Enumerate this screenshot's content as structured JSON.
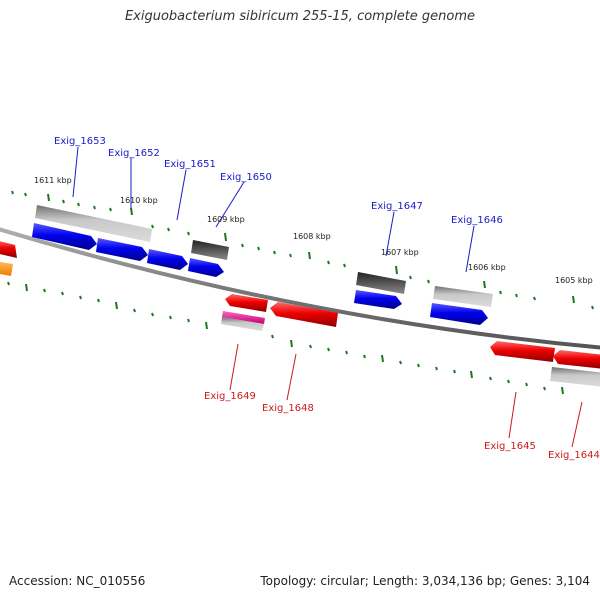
{
  "title": "Exiguobacterium sibiricum 255-15, complete genome",
  "footer": {
    "accession": "Accession: NC_010556",
    "summary": "Topology: circular; Length: 3,034,136 bp; Genes: 3,104"
  },
  "colors": {
    "forward_cds": "#0a0af0",
    "reverse_cds": "#ee0a0a",
    "gray_feature": "#a6a6a6",
    "dark_feature": "#555555",
    "pink_feature": "#e81e9a",
    "orange_feature": "#ff9900",
    "backbone": "#888888",
    "ticks": "#1a7a1a",
    "forward_label": "#1a1ac8",
    "reverse_label": "#cc1a1a"
  },
  "scale_labels": [
    "1611 kbp",
    "1610 kbp",
    "1609 kbp",
    "1608 kbp",
    "1607 kbp",
    "1606 kbp",
    "1605 kbp"
  ],
  "forward_genes": [
    "Exig_1653",
    "Exig_1652",
    "Exig_1651",
    "Exig_1650",
    "Exig_1647",
    "Exig_1646"
  ],
  "reverse_genes": [
    "Exig_1649",
    "Exig_1648",
    "Exig_1645",
    "Exig_1644"
  ]
}
